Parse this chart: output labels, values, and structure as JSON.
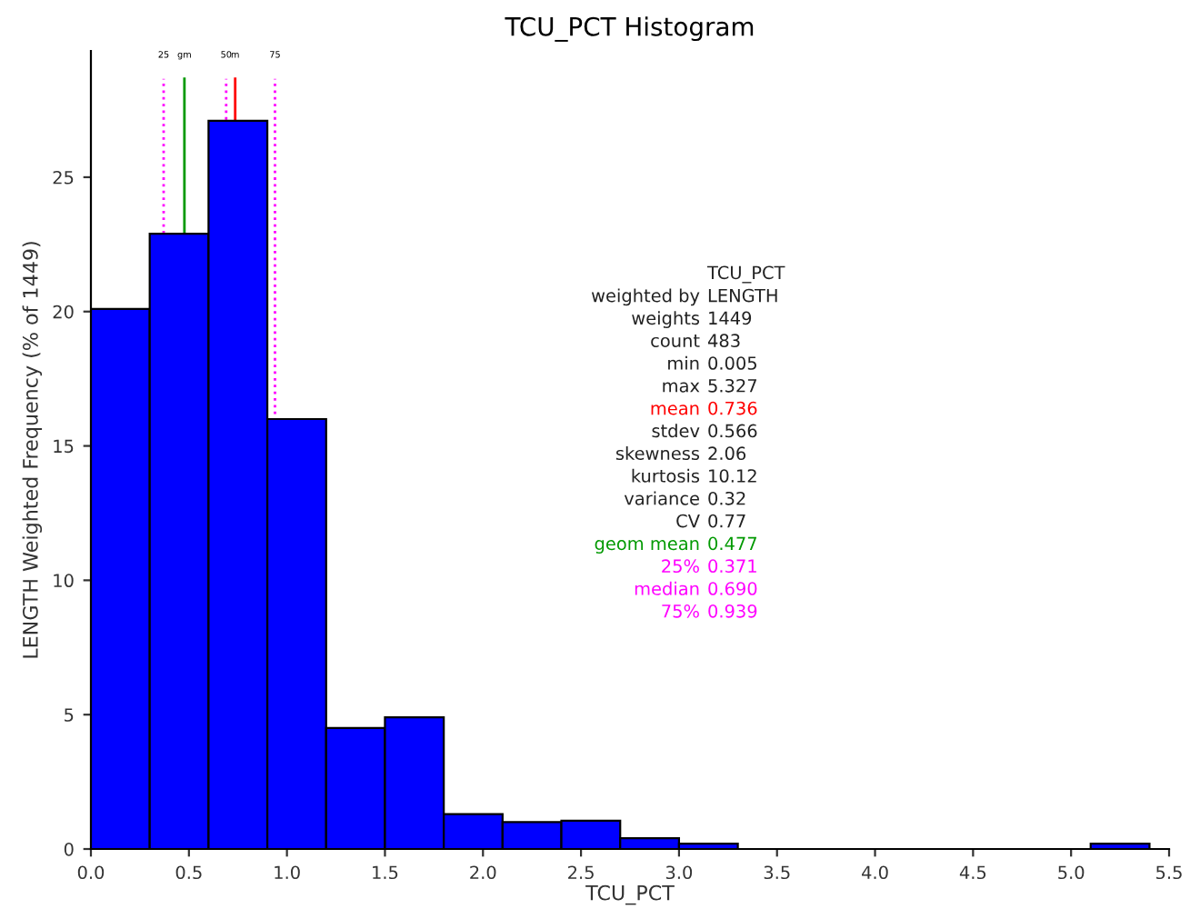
{
  "chart_data": {
    "type": "histogram",
    "title": "TCU_PCT Histogram",
    "xlabel": "TCU_PCT",
    "ylabel": "LENGTH Weighted Frequency (% of 1449)",
    "bins": [
      0.0,
      0.3,
      0.6,
      0.9,
      1.2,
      1.5,
      1.8,
      2.1,
      2.4,
      2.7,
      3.0,
      3.3,
      3.6,
      3.9,
      4.2,
      4.5,
      4.8,
      5.1,
      5.4
    ],
    "values": [
      20.1,
      22.9,
      27.1,
      16.0,
      4.5,
      4.9,
      1.3,
      1.0,
      1.05,
      0.4,
      0.2,
      0,
      0,
      0,
      0,
      0,
      0,
      0.2
    ],
    "color": "#0000ff",
    "xlim": [
      0,
      5.5
    ],
    "xticks": [
      {
        "value": 0,
        "label": "0.0"
      },
      {
        "value": 0.5,
        "label": "0.5"
      },
      {
        "value": 1,
        "label": "1.0"
      },
      {
        "value": 1.5,
        "label": "1.5"
      },
      {
        "value": 2,
        "label": "2.0"
      },
      {
        "value": 2.5,
        "label": "2.5"
      },
      {
        "value": 3,
        "label": "3.0"
      },
      {
        "value": 3.5,
        "label": "3.5"
      },
      {
        "value": 4,
        "label": "4.0"
      },
      {
        "value": 4.5,
        "label": "4.5"
      },
      {
        "value": 5,
        "label": "5.0"
      },
      {
        "value": 5.5,
        "label": "5.5"
      }
    ],
    "ylim": [
      0,
      29.7
    ],
    "yticks": [
      0,
      5,
      10,
      15,
      20,
      25
    ],
    "grid": false,
    "legend": false,
    "ref_lines": [
      {
        "axis": "x",
        "value": 0.371,
        "color": "#ff00ff",
        "line_style": "dotted"
      },
      {
        "axis": "x",
        "value": 0.477,
        "color": "#009900",
        "line_style": "solid"
      },
      {
        "axis": "x",
        "value": 0.69,
        "color": "#ff00ff",
        "line_style": "dotted"
      },
      {
        "axis": "x",
        "value": 0.736,
        "color": "#ff0000",
        "line_style": "solid"
      },
      {
        "axis": "x",
        "value": 0.939,
        "color": "#ff00ff",
        "line_style": "dotted"
      }
    ],
    "annotations": [
      "25",
      "gm",
      "50",
      "m",
      "75",
      "TCU_PCT",
      "weighted by",
      "LENGTH",
      "weights",
      "1449",
      "count",
      "483",
      "min",
      "0.005",
      "max",
      "5.327",
      "mean",
      "0.736",
      "stdev",
      "0.566",
      "skewness",
      "2.06",
      "kurtosis",
      "10.12",
      "variance",
      "0.32",
      "CV",
      "0.77",
      "geom mean",
      "0.477",
      "25%",
      "0.371",
      "median",
      "0.690",
      "75%",
      "0.939"
    ]
  }
}
